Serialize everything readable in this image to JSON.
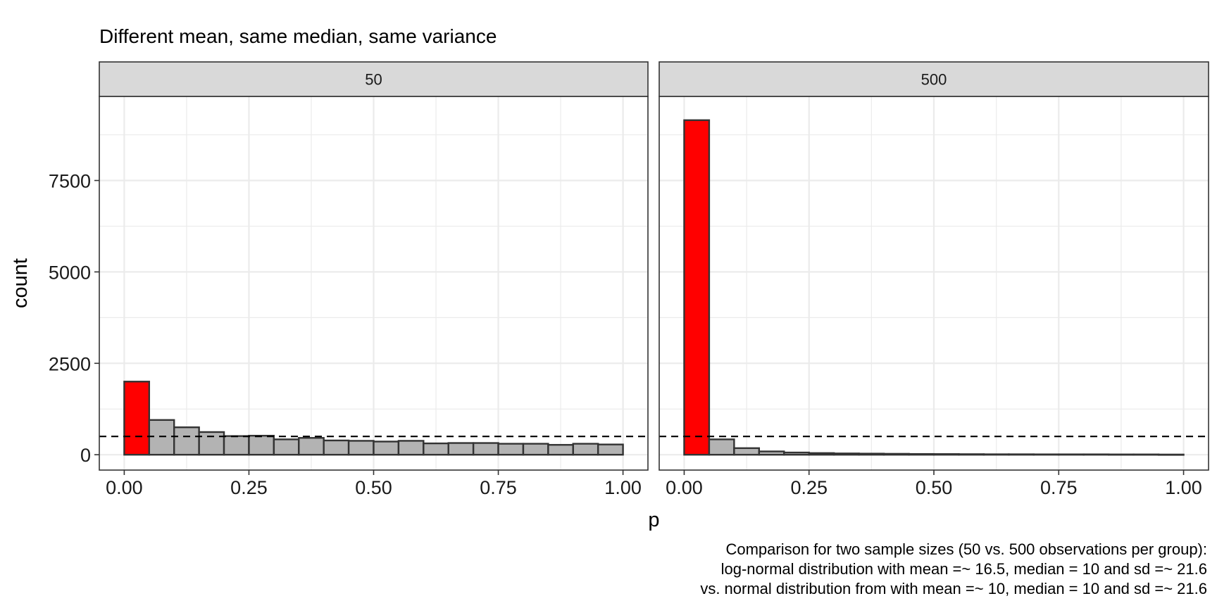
{
  "title": "Different mean, same median, same variance",
  "caption_lines": [
    "Comparison for two sample sizes (50 vs. 500 observations per group):",
    "log-normal distribution with mean =~ 16.5, median = 10 and sd =~ 21.6",
    "vs. normal distribution from with mean =~ 10, median = 10 and sd =~ 21.6"
  ],
  "colors": {
    "highlight_bar": "#ff0000",
    "bar": "#b3b3b3",
    "bar_outline": "#333333",
    "strip_fill": "#d9d9d9",
    "grid": "#ebebeb",
    "reference_line": "#000000"
  },
  "chart_data": {
    "type": "bar",
    "subtype": "faceted-histogram",
    "xlabel": "p",
    "ylabel": "count",
    "xlim": [
      -0.05,
      1.05
    ],
    "ylim": [
      -420,
      9800
    ],
    "x_ticks": [
      "0.00",
      "0.25",
      "0.50",
      "0.75",
      "1.00"
    ],
    "x_tick_values": [
      0,
      0.25,
      0.5,
      0.75,
      1.0
    ],
    "y_ticks": [
      "0",
      "2500",
      "5000",
      "7500"
    ],
    "y_tick_values": [
      0,
      2500,
      5000,
      7500
    ],
    "bin_width": 0.05,
    "bin_starts": [
      0,
      0.05,
      0.1,
      0.15,
      0.2,
      0.25,
      0.3,
      0.35,
      0.4,
      0.45,
      0.5,
      0.55,
      0.6,
      0.65,
      0.7,
      0.75,
      0.8,
      0.85,
      0.9,
      0.95
    ],
    "highlighted_bin": 0,
    "reference_line_y": 500,
    "grid": true,
    "facets": [
      {
        "label": "50",
        "values": [
          2000,
          950,
          750,
          620,
          510,
          520,
          420,
          460,
          390,
          380,
          360,
          380,
          310,
          320,
          320,
          300,
          300,
          270,
          300,
          280
        ]
      },
      {
        "label": "500",
        "values": [
          9150,
          420,
          180,
          90,
          60,
          45,
          35,
          30,
          25,
          20,
          18,
          15,
          12,
          12,
          10,
          10,
          10,
          8,
          8,
          5
        ]
      }
    ]
  }
}
